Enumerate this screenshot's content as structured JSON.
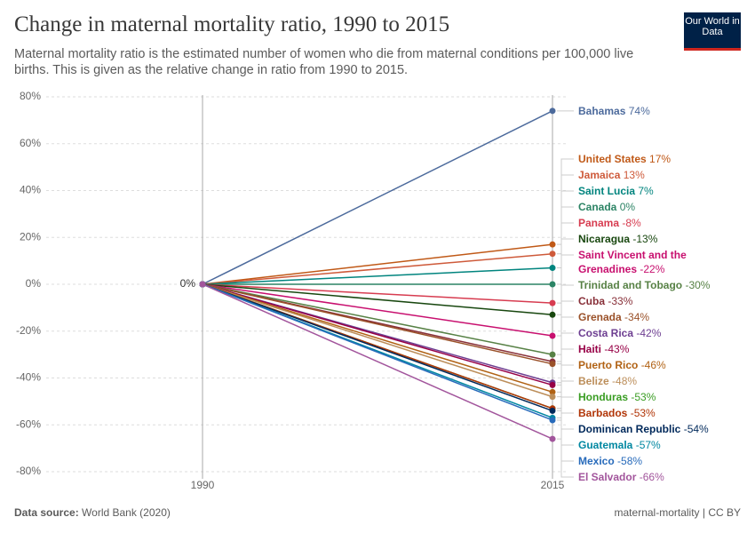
{
  "logo": "Our World in Data",
  "chart_data": {
    "type": "slope",
    "title": "Change in maternal mortality ratio, 1990 to 2015",
    "subtitle": "Maternal mortality ratio is the estimated number of women who die from maternal conditions per 100,000 live births. This is given as the relative change in ratio from 1990 to 2015.",
    "x": [
      1990,
      2015
    ],
    "xlim": [
      1990,
      2015
    ],
    "ylim": [
      -80,
      80
    ],
    "yticks": [
      {
        "value": 80,
        "label": "80%"
      },
      {
        "value": 60,
        "label": "60%"
      },
      {
        "value": 40,
        "label": "40%"
      },
      {
        "value": 20,
        "label": "20%"
      },
      {
        "value": 0,
        "label": "0%"
      },
      {
        "value": -20,
        "label": "-20%"
      },
      {
        "value": -40,
        "label": "-40%"
      },
      {
        "value": -60,
        "label": "-60%"
      },
      {
        "value": -80,
        "label": "-80%"
      }
    ],
    "grid": true,
    "start_label": "0%",
    "series": [
      {
        "name": "Bahamas",
        "color": "#4c6a9c",
        "values": [
          0,
          74
        ],
        "value_labels": [
          "0%",
          "74%"
        ]
      },
      {
        "name": "United States",
        "color": "#c05917",
        "values": [
          0,
          17
        ],
        "value_labels": [
          "0%",
          "17%"
        ]
      },
      {
        "name": "Jamaica",
        "color": "#ce5a3a",
        "values": [
          0,
          13
        ],
        "value_labels": [
          "0%",
          "13%"
        ]
      },
      {
        "name": "Saint Lucia",
        "color": "#00847e",
        "values": [
          0,
          7
        ],
        "value_labels": [
          "0%",
          "7%"
        ]
      },
      {
        "name": "Canada",
        "color": "#2c8465",
        "values": [
          0,
          0
        ],
        "value_labels": [
          "0%",
          "0%"
        ]
      },
      {
        "name": "Panama",
        "color": "#d73c50",
        "values": [
          0,
          -8
        ],
        "value_labels": [
          "0%",
          "-8%"
        ]
      },
      {
        "name": "Nicaragua",
        "color": "#18470f",
        "values": [
          0,
          -13
        ],
        "value_labels": [
          "0%",
          "-13%"
        ]
      },
      {
        "name": "Saint Vincent and the Grenadines",
        "color": "#c8106f",
        "values": [
          0,
          -22
        ],
        "value_labels": [
          "0%",
          "-22%"
        ]
      },
      {
        "name": "Trinidad and Tobago",
        "color": "#578145",
        "values": [
          0,
          -30
        ],
        "value_labels": [
          "0%",
          "-30%"
        ]
      },
      {
        "name": "Cuba",
        "color": "#883039",
        "values": [
          0,
          -33
        ],
        "value_labels": [
          "0%",
          "-33%"
        ]
      },
      {
        "name": "Grenada",
        "color": "#9a5129",
        "values": [
          0,
          -34
        ],
        "value_labels": [
          "0%",
          "-34%"
        ]
      },
      {
        "name": "Costa Rica",
        "color": "#6d3e91",
        "values": [
          0,
          -42
        ],
        "value_labels": [
          "0%",
          "-42%"
        ]
      },
      {
        "name": "Haiti",
        "color": "#970046",
        "values": [
          0,
          -43
        ],
        "value_labels": [
          "0%",
          "-43%"
        ]
      },
      {
        "name": "Puerto Rico",
        "color": "#b16214",
        "values": [
          0,
          -46
        ],
        "value_labels": [
          "0%",
          "-46%"
        ]
      },
      {
        "name": "Belize",
        "color": "#bc8e5a",
        "values": [
          0,
          -48
        ],
        "value_labels": [
          "0%",
          "-48%"
        ]
      },
      {
        "name": "Honduras",
        "color": "#3a9d23",
        "values": [
          0,
          -53
        ],
        "value_labels": [
          "0%",
          "-53%"
        ]
      },
      {
        "name": "Barbados",
        "color": "#b13507",
        "values": [
          0,
          -53
        ],
        "value_labels": [
          "0%",
          "-53%"
        ]
      },
      {
        "name": "Dominican Republic",
        "color": "#00295b",
        "values": [
          0,
          -54
        ],
        "value_labels": [
          "0%",
          "-54%"
        ]
      },
      {
        "name": "Guatemala",
        "color": "#0087a1",
        "values": [
          0,
          -57
        ],
        "value_labels": [
          "0%",
          "-57%"
        ]
      },
      {
        "name": "Mexico",
        "color": "#286bbb",
        "values": [
          0,
          -58
        ],
        "value_labels": [
          "0%",
          "-58%"
        ]
      },
      {
        "name": "El Salvador",
        "color": "#a2559c",
        "values": [
          0,
          -66
        ],
        "value_labels": [
          "0%",
          "-66%"
        ]
      }
    ]
  },
  "footer": {
    "source_label": "Data source:",
    "source": "World Bank (2020)",
    "right": "maternal-mortality | CC BY"
  }
}
